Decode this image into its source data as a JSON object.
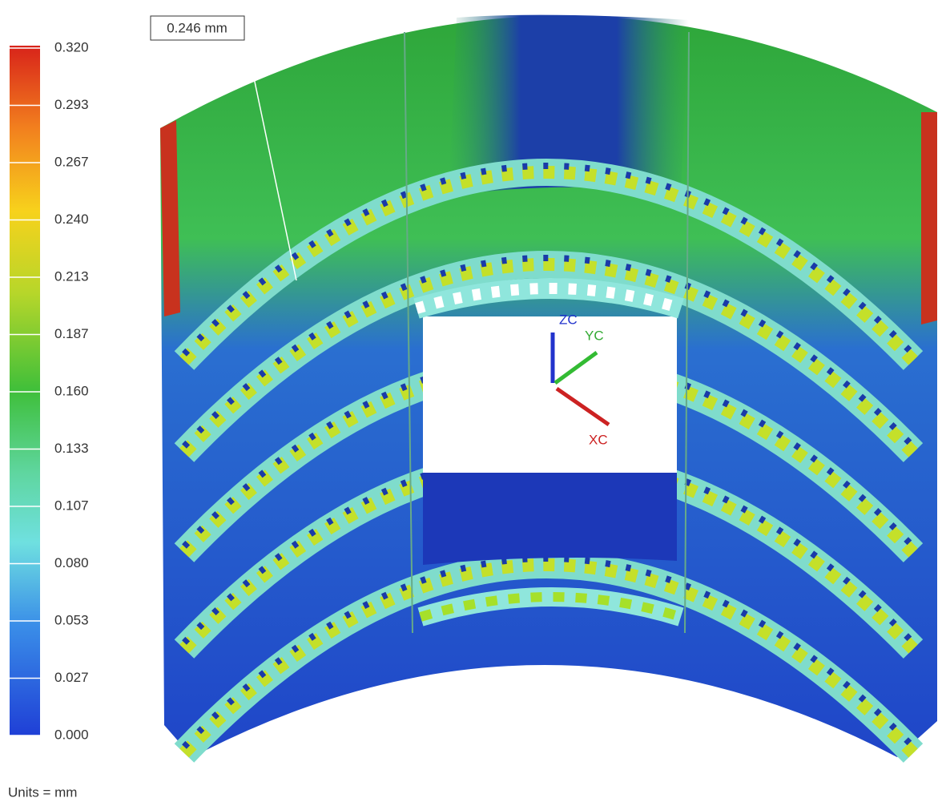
{
  "legend": {
    "ticks": [
      "0.320",
      "0.293",
      "0.267",
      "0.240",
      "0.213",
      "0.187",
      "0.160",
      "0.133",
      "0.107",
      "0.080",
      "0.053",
      "0.027",
      "0.000"
    ],
    "units": "Units = mm"
  },
  "annotation": "0.246 mm",
  "triad": {
    "zc": "ZC",
    "yc": "YC",
    "xc": "XC"
  }
}
